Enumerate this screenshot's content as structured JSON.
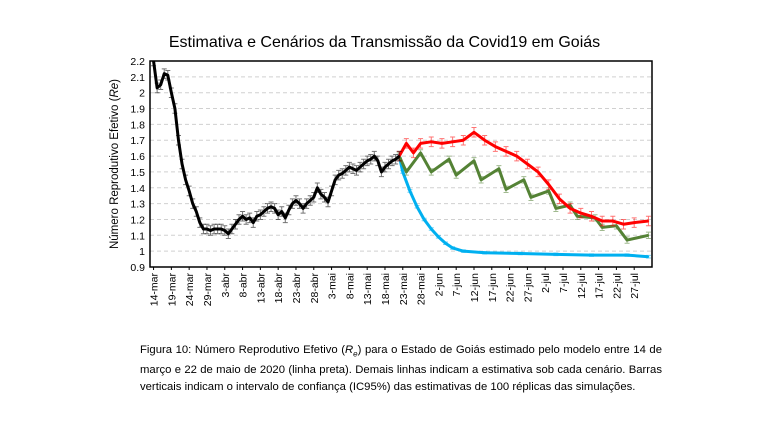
{
  "chart_data": {
    "type": "line",
    "title": "Estimativa e Cenários da Transmissão da Covid19 em Goiás",
    "ylabel_prefix": "Número Reprodutivo Efetivo (",
    "ylabel_symbol": "Re",
    "ylabel_suffix": ")",
    "xlabel": "",
    "ylim": [
      0.9,
      2.2
    ],
    "yticks": [
      "0.9",
      "1",
      "1.1",
      "1.2",
      "1.3",
      "1.4",
      "1.5",
      "1.6",
      "1.7",
      "1.8",
      "1.9",
      "2",
      "2.1",
      "2.2"
    ],
    "xlim": [
      "2020-03-13",
      "2020-08-01"
    ],
    "xtick_labels": [
      "14-mar",
      "19-mar",
      "24-mar",
      "29-mar",
      "3-abr",
      "8-abr",
      "13-abr",
      "18-abr",
      "23-abr",
      "28-abr",
      "3-mai",
      "8-mai",
      "13-mai",
      "18-mai",
      "23-mai",
      "28-mai",
      "2-jun",
      "7-jun",
      "12-jun",
      "17-jun",
      "22-jun",
      "27-jun",
      "2-jul",
      "7-jul",
      "12-jul",
      "17-jul",
      "22-jul",
      "27-jul"
    ],
    "grid": true,
    "legend": "none",
    "series": [
      {
        "color": "#000000",
        "error": 0.03,
        "x": [
          "2020-03-14",
          "2020-03-15",
          "2020-03-16",
          "2020-03-17",
          "2020-03-18",
          "2020-03-19",
          "2020-03-20",
          "2020-03-21",
          "2020-03-22",
          "2020-03-23",
          "2020-03-24",
          "2020-03-25",
          "2020-03-26",
          "2020-03-27",
          "2020-03-28",
          "2020-03-29",
          "2020-03-30",
          "2020-03-31",
          "2020-04-01",
          "2020-04-02",
          "2020-04-03",
          "2020-04-04",
          "2020-04-05",
          "2020-04-06",
          "2020-04-07",
          "2020-04-08",
          "2020-04-09",
          "2020-04-10",
          "2020-04-11",
          "2020-04-12",
          "2020-04-13",
          "2020-04-14",
          "2020-04-15",
          "2020-04-16",
          "2020-04-17",
          "2020-04-18",
          "2020-04-19",
          "2020-04-20",
          "2020-04-21",
          "2020-04-22",
          "2020-04-23",
          "2020-04-24",
          "2020-04-25",
          "2020-04-26",
          "2020-04-27",
          "2020-04-28",
          "2020-04-29",
          "2020-04-30",
          "2020-05-01",
          "2020-05-02",
          "2020-05-03",
          "2020-05-04",
          "2020-05-05",
          "2020-05-06",
          "2020-05-07",
          "2020-05-08",
          "2020-05-09",
          "2020-05-10",
          "2020-05-11",
          "2020-05-12",
          "2020-05-13",
          "2020-05-14",
          "2020-05-15",
          "2020-05-16",
          "2020-05-17",
          "2020-05-18",
          "2020-05-19",
          "2020-05-20",
          "2020-05-21",
          "2020-05-22"
        ],
        "y": [
          2.2,
          2.03,
          2.05,
          2.12,
          2.11,
          2.0,
          1.9,
          1.7,
          1.55,
          1.45,
          1.38,
          1.3,
          1.25,
          1.18,
          1.14,
          1.14,
          1.13,
          1.14,
          1.14,
          1.14,
          1.13,
          1.11,
          1.14,
          1.17,
          1.2,
          1.22,
          1.2,
          1.21,
          1.18,
          1.22,
          1.23,
          1.25,
          1.27,
          1.28,
          1.27,
          1.23,
          1.25,
          1.21,
          1.26,
          1.3,
          1.32,
          1.3,
          1.27,
          1.3,
          1.32,
          1.34,
          1.4,
          1.36,
          1.34,
          1.31,
          1.38,
          1.45,
          1.48,
          1.49,
          1.51,
          1.53,
          1.52,
          1.51,
          1.53,
          1.55,
          1.57,
          1.58,
          1.6,
          1.57,
          1.5,
          1.53,
          1.55,
          1.57,
          1.58,
          1.6
        ]
      },
      {
        "color": "#ff0000",
        "error": 0.03,
        "x": [
          "2020-05-22",
          "2020-05-24",
          "2020-05-26",
          "2020-05-28",
          "2020-05-31",
          "2020-06-03",
          "2020-06-06",
          "2020-06-09",
          "2020-06-12",
          "2020-06-15",
          "2020-06-18",
          "2020-06-21",
          "2020-06-24",
          "2020-06-27",
          "2020-06-30",
          "2020-07-03",
          "2020-07-06",
          "2020-07-09",
          "2020-07-12",
          "2020-07-15",
          "2020-07-18",
          "2020-07-21",
          "2020-07-24",
          "2020-07-27",
          "2020-07-31"
        ],
        "y": [
          1.6,
          1.68,
          1.62,
          1.68,
          1.69,
          1.68,
          1.69,
          1.7,
          1.75,
          1.7,
          1.66,
          1.63,
          1.6,
          1.55,
          1.5,
          1.42,
          1.33,
          1.27,
          1.24,
          1.22,
          1.19,
          1.19,
          1.17,
          1.18,
          1.19
        ]
      },
      {
        "color": "#548235",
        "error": 0.02,
        "x": [
          "2020-05-22",
          "2020-05-24",
          "2020-05-28",
          "2020-05-31",
          "2020-06-05",
          "2020-06-07",
          "2020-06-12",
          "2020-06-14",
          "2020-06-19",
          "2020-06-21",
          "2020-06-26",
          "2020-06-28",
          "2020-07-03",
          "2020-07-05",
          "2020-07-09",
          "2020-07-11",
          "2020-07-16",
          "2020-07-18",
          "2020-07-22",
          "2020-07-25",
          "2020-07-31"
        ],
        "y": [
          1.6,
          1.5,
          1.62,
          1.5,
          1.58,
          1.48,
          1.57,
          1.45,
          1.52,
          1.39,
          1.45,
          1.34,
          1.38,
          1.27,
          1.29,
          1.22,
          1.21,
          1.15,
          1.16,
          1.07,
          1.1
        ]
      },
      {
        "color": "#00b0f0",
        "error": 0.008,
        "x": [
          "2020-05-22",
          "2020-05-23",
          "2020-05-25",
          "2020-05-27",
          "2020-05-29",
          "2020-05-31",
          "2020-06-02",
          "2020-06-04",
          "2020-06-06",
          "2020-06-09",
          "2020-06-15",
          "2020-06-25",
          "2020-07-05",
          "2020-07-15",
          "2020-07-25",
          "2020-07-31"
        ],
        "y": [
          1.6,
          1.5,
          1.38,
          1.28,
          1.2,
          1.14,
          1.09,
          1.05,
          1.02,
          1.0,
          0.99,
          0.985,
          0.98,
          0.975,
          0.975,
          0.965
        ]
      }
    ]
  },
  "caption": {
    "prefix": "Figura 10: Número Reprodutivo Efetivo (",
    "symbol": "R",
    "subscript": "e",
    "rest": ") para o Estado de Goiás estimado pelo modelo entre 14 de março e 22 de maio de 2020 (linha preta). Demais linhas indicam a estimativa sob cada cenário. Barras verticais indicam o intervalo de confiança (IC95%) das estimativas de 100 réplicas das simulações."
  }
}
